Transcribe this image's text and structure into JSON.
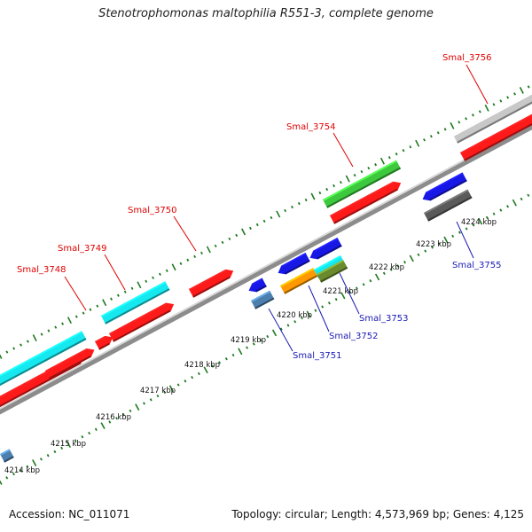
{
  "title": "Stenotrophomonas maltophilia R551-3, complete genome",
  "footer": {
    "accession": "Accession: NC_011071",
    "summary": "Topology: circular; Length: 4,573,969 bp; Genes: 4,125"
  },
  "colors": {
    "label_top": "#e00000",
    "label_bottom": "#1a1ab4",
    "backbone": "#8c8c8c",
    "tick": "#1f7a1f"
  },
  "scale_labels": [
    "4214 kbp",
    "4215 kbp",
    "4216 kbp",
    "4217 kbp",
    "4218 kbp",
    "4219 kbp",
    "4220 kbp",
    "4221 kbp",
    "4222 kbp",
    "4223 kbp",
    "4224 kbp"
  ],
  "gene_labels_top": [
    "Smal_3748",
    "Smal_3749",
    "Smal_3750",
    "Smal_3754",
    "Smal_3756"
  ],
  "gene_labels_bottom": [
    "Smal_3751",
    "Smal_3752",
    "Smal_3753",
    "Smal_3755"
  ],
  "feature_colors": {
    "cds": "#ff1a1a",
    "cyan": "#15e8ee",
    "green": "#3ec83e",
    "light_gray": "#c8c8c8",
    "blue": "#1717e6",
    "steel": "#4d7fae",
    "orange": "#ff9900",
    "olive": "#6b8a2e",
    "dark_gray": "#5a5a5a"
  }
}
